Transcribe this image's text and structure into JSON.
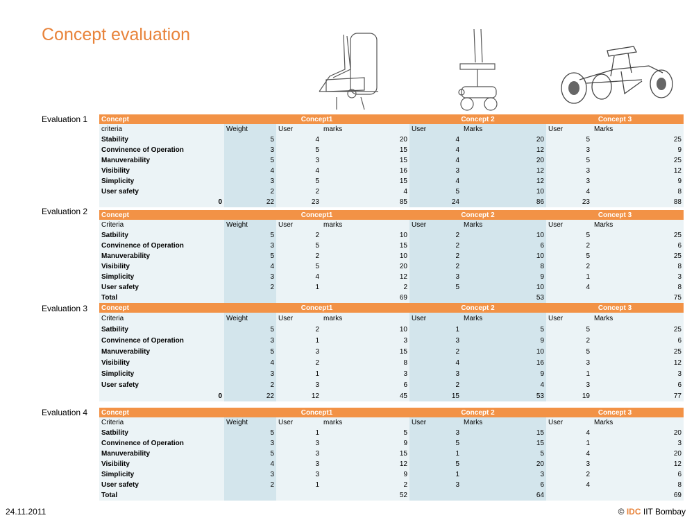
{
  "title": "Concept evaluation",
  "sketch_icons": [
    "chair-sketch-icon",
    "wheeled-chair-sketch-icon",
    "mobility-vehicle-sketch-icon"
  ],
  "colors": {
    "title": "#e8833a",
    "header": "#f29246",
    "light_column": "#ebf3f6",
    "dark_column": "#d3e5ec"
  },
  "evaluations": [
    {
      "label": "Evaluation 1",
      "header": [
        "Concept",
        "Concept1",
        "Concept 2",
        "Concept 3"
      ],
      "subheader": [
        "criteria",
        "Weight",
        "User",
        "marks",
        "User",
        "Marks",
        "User",
        "Marks"
      ],
      "rows": [
        [
          "Stability",
          "5",
          "4",
          "20",
          "4",
          "20",
          "5",
          "25"
        ],
        [
          "Convinence of Operation",
          "3",
          "5",
          "15",
          "4",
          "12",
          "3",
          "9"
        ],
        [
          "Manuverability",
          "5",
          "3",
          "15",
          "4",
          "20",
          "5",
          "25"
        ],
        [
          "Visibility",
          "4",
          "4",
          "16",
          "3",
          "12",
          "3",
          "12"
        ],
        [
          "Simplicity",
          "3",
          "5",
          "15",
          "4",
          "12",
          "3",
          "9"
        ],
        [
          "User safety",
          "2",
          "2",
          "4",
          "5",
          "10",
          "4",
          "8"
        ]
      ],
      "total": [
        "0",
        "22",
        "23",
        "85",
        "24",
        "86",
        "23",
        "88"
      ]
    },
    {
      "label": "Evaluation 2",
      "header": [
        "Concept",
        "Concept1",
        "Concept 2",
        "Concept 3"
      ],
      "subheader": [
        "Criteria",
        "Weight",
        "User",
        "marks",
        "User",
        "Marks",
        "User",
        "Marks"
      ],
      "rows": [
        [
          "Satbility",
          "5",
          "2",
          "10",
          "2",
          "10",
          "5",
          "25"
        ],
        [
          "Convinence of Operation",
          "3",
          "5",
          "15",
          "2",
          "6",
          "2",
          "6"
        ],
        [
          "Manuverability",
          "5",
          "2",
          "10",
          "2",
          "10",
          "5",
          "25"
        ],
        [
          "Visibility",
          "4",
          "5",
          "20",
          "2",
          "8",
          "2",
          "8"
        ],
        [
          "Simplicity",
          "3",
          "4",
          "12",
          "3",
          "9",
          "1",
          "3"
        ],
        [
          "User safety",
          "2",
          "1",
          "2",
          "5",
          "10",
          "4",
          "8"
        ]
      ],
      "total": [
        "Total",
        "",
        "",
        "69",
        "",
        "53",
        "",
        "75"
      ]
    },
    {
      "label": "Evaluation 3",
      "header": [
        "Concept",
        "Concept1",
        "Concept 2",
        "Concept 3"
      ],
      "subheader": [
        "Criteria",
        "Weight",
        "User",
        "marks",
        "User",
        "Marks",
        "User",
        "Marks"
      ],
      "rows": [
        [
          "Satbility",
          "5",
          "2",
          "10",
          "1",
          "5",
          "5",
          "25"
        ],
        [
          "Convinence of Operation",
          "3",
          "1",
          "3",
          "3",
          "9",
          "2",
          "6"
        ],
        [
          "Manuverability",
          "5",
          "3",
          "15",
          "2",
          "10",
          "5",
          "25"
        ],
        [
          "Visibility",
          "4",
          "2",
          "8",
          "4",
          "16",
          "3",
          "12"
        ],
        [
          "Simplicity",
          "3",
          "1",
          "3",
          "3",
          "9",
          "1",
          "3"
        ],
        [
          "User safety",
          "2",
          "3",
          "6",
          "2",
          "4",
          "3",
          "6"
        ]
      ],
      "total": [
        "0",
        "22",
        "12",
        "45",
        "15",
        "53",
        "19",
        "77"
      ]
    },
    {
      "label": "Evaluation 4",
      "header": [
        "Concept",
        "Concept1",
        "Concept 2",
        "Concept 3"
      ],
      "subheader": [
        "Criteria",
        "Weight",
        "User",
        "marks",
        "User",
        "Marks",
        "User",
        "Marks"
      ],
      "rows": [
        [
          "Satbility",
          "5",
          "1",
          "5",
          "3",
          "15",
          "4",
          "20"
        ],
        [
          "Convinence of Operation",
          "3",
          "3",
          "9",
          "5",
          "15",
          "1",
          "3"
        ],
        [
          "Manuverability",
          "5",
          "3",
          "15",
          "1",
          "5",
          "4",
          "20"
        ],
        [
          "Visibility",
          "4",
          "3",
          "12",
          "5",
          "20",
          "3",
          "12"
        ],
        [
          "Simplicity",
          "3",
          "3",
          "9",
          "1",
          "3",
          "2",
          "6"
        ],
        [
          "User safety",
          "2",
          "1",
          "2",
          "3",
          "6",
          "4",
          "8"
        ]
      ],
      "total": [
        "Total",
        "",
        "",
        "52",
        "",
        "64",
        "",
        "69"
      ]
    }
  ],
  "footer": {
    "date": "24.11.2011",
    "copyright": "©",
    "org": "IDC",
    "institute": "IIT Bombay"
  }
}
